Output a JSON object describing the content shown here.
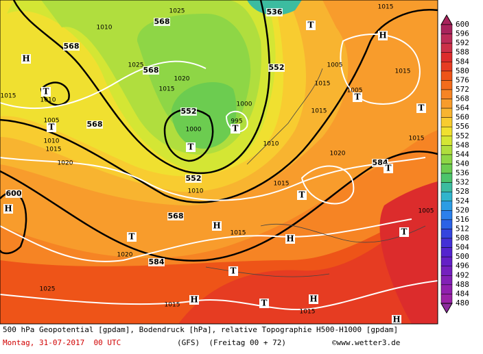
{
  "map": {
    "labels": [
      {
        "text": "536",
        "kind": "geo"
      },
      {
        "text": "568",
        "kind": "geo"
      },
      {
        "text": "568",
        "kind": "geo"
      },
      {
        "text": "568",
        "kind": "geo"
      },
      {
        "text": "552",
        "kind": "geo"
      },
      {
        "text": "552",
        "kind": "geo"
      },
      {
        "text": "552",
        "kind": "geo"
      },
      {
        "text": "568",
        "kind": "geo"
      },
      {
        "text": "568",
        "kind": "geo"
      },
      {
        "text": "584",
        "kind": "geo"
      },
      {
        "text": "584",
        "kind": "geo"
      },
      {
        "text": "600",
        "kind": "geo"
      },
      {
        "text": "H",
        "kind": "center"
      },
      {
        "text": "T",
        "kind": "center"
      },
      {
        "text": "T",
        "kind": "center"
      },
      {
        "text": "T",
        "kind": "center"
      },
      {
        "text": "T",
        "kind": "center"
      },
      {
        "text": "H",
        "kind": "center"
      },
      {
        "text": "T",
        "kind": "center"
      },
      {
        "text": "T",
        "kind": "center"
      },
      {
        "text": "T",
        "kind": "center"
      },
      {
        "text": "T",
        "kind": "center"
      },
      {
        "text": "H",
        "kind": "center"
      },
      {
        "text": "T",
        "kind": "center"
      },
      {
        "text": "H",
        "kind": "center"
      },
      {
        "text": "T",
        "kind": "center"
      },
      {
        "text": "H",
        "kind": "center"
      },
      {
        "text": "T",
        "kind": "center"
      },
      {
        "text": "T",
        "kind": "center"
      },
      {
        "text": "H",
        "kind": "center"
      },
      {
        "text": "T",
        "kind": "center"
      },
      {
        "text": "H",
        "kind": "center"
      },
      {
        "text": "H",
        "kind": "center"
      },
      {
        "text": "1025",
        "kind": "pressure"
      },
      {
        "text": "1010",
        "kind": "pressure"
      },
      {
        "text": "1025",
        "kind": "pressure"
      },
      {
        "text": "1020",
        "kind": "pressure"
      },
      {
        "text": "1015",
        "kind": "pressure"
      },
      {
        "text": "1010",
        "kind": "pressure"
      },
      {
        "text": "1015",
        "kind": "pressure"
      },
      {
        "text": "1005",
        "kind": "pressure"
      },
      {
        "text": "1010",
        "kind": "pressure"
      },
      {
        "text": "1015",
        "kind": "pressure"
      },
      {
        "text": "1020",
        "kind": "pressure"
      },
      {
        "text": "1000",
        "kind": "pressure"
      },
      {
        "text": "995",
        "kind": "pressure"
      },
      {
        "text": "1000",
        "kind": "pressure"
      },
      {
        "text": "1010",
        "kind": "pressure"
      },
      {
        "text": "1015",
        "kind": "pressure"
      },
      {
        "text": "1020",
        "kind": "pressure"
      },
      {
        "text": "1015",
        "kind": "pressure"
      },
      {
        "text": "1015",
        "kind": "pressure"
      },
      {
        "text": "1005",
        "kind": "pressure"
      },
      {
        "text": "1005",
        "kind": "pressure"
      },
      {
        "text": "1015",
        "kind": "pressure"
      },
      {
        "text": "1015",
        "kind": "pressure"
      },
      {
        "text": "1015",
        "kind": "pressure"
      },
      {
        "text": "1005",
        "kind": "pressure"
      },
      {
        "text": "1010",
        "kind": "pressure"
      },
      {
        "text": "1015",
        "kind": "pressure"
      },
      {
        "text": "1020",
        "kind": "pressure"
      },
      {
        "text": "1025",
        "kind": "pressure"
      },
      {
        "text": "1015",
        "kind": "pressure"
      },
      {
        "text": "1015",
        "kind": "pressure"
      }
    ]
  },
  "colorbar": {
    "levels": [
      600,
      596,
      592,
      588,
      584,
      580,
      576,
      572,
      568,
      564,
      560,
      556,
      552,
      548,
      544,
      540,
      536,
      532,
      528,
      524,
      520,
      516,
      512,
      508,
      504,
      500,
      496,
      492,
      488,
      484,
      480
    ],
    "colors": [
      "#a8245c",
      "#bc2c58",
      "#cc3048",
      "#dc2c2c",
      "#e63c22",
      "#ee5418",
      "#f26c1c",
      "#f68424",
      "#f89c2c",
      "#f8b430",
      "#f8cc30",
      "#f0e030",
      "#d4e634",
      "#b0de3e",
      "#8ed646",
      "#6ccc50",
      "#4cc46c",
      "#3cbca0",
      "#30b4cc",
      "#2c9ce4",
      "#2c80ec",
      "#2c62e6",
      "#3444de",
      "#4430d6",
      "#5424ce",
      "#6420c6",
      "#7420be",
      "#8220b6",
      "#9020ae",
      "#9a22a6",
      "#8c2c9c"
    ]
  },
  "footer": {
    "line1": "500 hPa Geopotential [gpdam], Bodendruck [hPa], relative Topographie H500-H1000 [gpdam]",
    "date": "Montag, 31-07-2017  00 UTC",
    "run": "(GFS)  (Freitag 00 + 72)",
    "credit": "©www.wetter3.de"
  }
}
